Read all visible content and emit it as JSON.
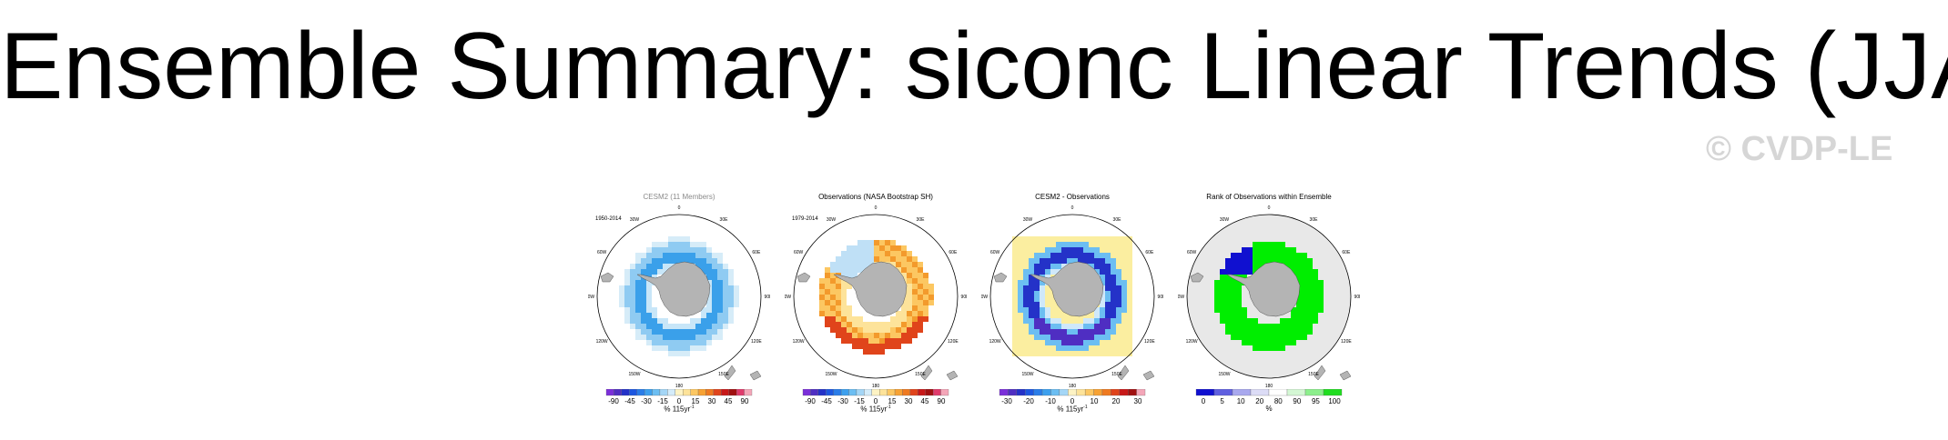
{
  "page": {
    "title": "Ensemble Summary: siconc Linear Trends (JJA)",
    "watermark": "© CVDP-LE"
  },
  "panels": [
    {
      "title": "CESM2 (11 Members)",
      "years": "1950-2014",
      "unit": "% 115yr",
      "unit_sup": "-1",
      "colorbar_labels": [
        "-90",
        "-45",
        "-30",
        "-15",
        "0",
        "15",
        "30",
        "45",
        "90"
      ],
      "colorbar_colors": [
        "#7b2fd9",
        "#4f2ec2",
        "#2432c8",
        "#1d57e0",
        "#2a7de8",
        "#3da0ee",
        "#6cbef2",
        "#a4d6f6",
        "#d4ecfa",
        "#fdf3c4",
        "#fde39a",
        "#fcc762",
        "#f7a233",
        "#ef7a20",
        "#e0441b",
        "#c81818",
        "#a01010",
        "#e03b6c",
        "#f4a6b8"
      ],
      "style": "cesm"
    },
    {
      "title": "Observations (NASA Bootstrap SH)",
      "years": "1979-2014",
      "unit": "% 115yr",
      "unit_sup": "-1",
      "colorbar_labels": [
        "-90",
        "-45",
        "-30",
        "-15",
        "0",
        "15",
        "30",
        "45",
        "90"
      ],
      "colorbar_colors": [
        "#7b2fd9",
        "#4f2ec2",
        "#2432c8",
        "#1d57e0",
        "#2a7de8",
        "#3da0ee",
        "#6cbef2",
        "#a4d6f6",
        "#d4ecfa",
        "#fdf3c4",
        "#fde39a",
        "#fcc762",
        "#f7a233",
        "#ef7a20",
        "#e0441b",
        "#c81818",
        "#a01010",
        "#e03b6c",
        "#f4a6b8"
      ],
      "style": "obs"
    },
    {
      "title": "CESM2 - Observations",
      "years": "",
      "unit": "% 115yr",
      "unit_sup": "-1",
      "colorbar_labels": [
        "-30",
        "-20",
        "-10",
        "0",
        "10",
        "20",
        "30"
      ],
      "colorbar_colors": [
        "#7b2fd9",
        "#4f2ec2",
        "#2432c8",
        "#1d57e0",
        "#2a7de8",
        "#3da0ee",
        "#6cbef2",
        "#a4d6f6",
        "#fdf3c4",
        "#fde39a",
        "#fcc762",
        "#f7a233",
        "#ef7a20",
        "#e0441b",
        "#c81818",
        "#a01010",
        "#f4a6b8"
      ],
      "style": "diff"
    },
    {
      "title": "Rank of Observations within Ensemble",
      "years": "",
      "unit": "%",
      "unit_sup": "",
      "colorbar_labels": [
        "0",
        "5",
        "10",
        "20",
        "80",
        "90",
        "95",
        "100"
      ],
      "colorbar_colors": [
        "#1010d0",
        "#6060e0",
        "#a8a8ee",
        "#dcdcf6",
        "#ffffff",
        "#d4f7d4",
        "#8cef8c",
        "#20dd20"
      ],
      "style": "rank"
    }
  ],
  "map_labels": {
    "lon": [
      "0",
      "30E",
      "60E",
      "90E",
      "120E",
      "150E",
      "180",
      "150W",
      "120W",
      "90W",
      "60W",
      "30W"
    ]
  },
  "colors": {
    "land": "#b4b4b4",
    "blue": "#3aa0ea",
    "yellow": "#fbeea0",
    "orange": "#f39a2c",
    "green": "#00ee00"
  }
}
